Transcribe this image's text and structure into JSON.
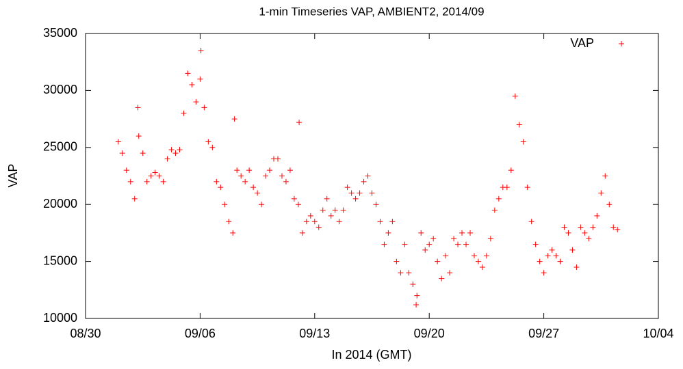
{
  "chart_data": {
    "type": "scatter",
    "title": "1-min Timeseries VAP, AMBIENT2, 2014/09",
    "x_label": "In 2014 (GMT)",
    "y_label": "VAP",
    "legend_position": "top-right",
    "series": [
      {
        "name": "VAP",
        "color": "#ff0000",
        "x": [
          2.0,
          2.25,
          2.5,
          2.75,
          3.0,
          3.25,
          3.5,
          3.75,
          4.0,
          4.25,
          4.5,
          4.75,
          5.0,
          5.25,
          5.5,
          5.75,
          6.0,
          6.25,
          6.5,
          6.75,
          7.0,
          7.25,
          7.5,
          7.75,
          8.0,
          8.25,
          8.5,
          8.75,
          9.0,
          9.25,
          9.5,
          9.75,
          10.0,
          10.25,
          10.5,
          10.75,
          11.0,
          11.25,
          11.5,
          11.75,
          12.0,
          12.25,
          12.5,
          12.75,
          13.0,
          13.25,
          13.5,
          13.75,
          14.0,
          14.25,
          14.5,
          14.75,
          15.0,
          15.25,
          15.5,
          15.75,
          16.0,
          16.25,
          16.5,
          16.75,
          17.0,
          17.25,
          17.5,
          17.75,
          18.0,
          18.25,
          18.5,
          18.75,
          19.0,
          19.25,
          19.5,
          19.75,
          20.0,
          20.25,
          20.5,
          20.75,
          21.0,
          21.25,
          21.5,
          21.75,
          22.0,
          22.25,
          22.5,
          22.75,
          23.0,
          23.25,
          23.5,
          23.75,
          24.0,
          24.25,
          24.5,
          24.75,
          25.0,
          25.25,
          25.5,
          25.75,
          26.0,
          26.25,
          26.5,
          26.75,
          27.0,
          27.25,
          27.5,
          27.75,
          28.0,
          28.25,
          28.5,
          28.75,
          29.0,
          29.25,
          29.5,
          29.75,
          30.0,
          30.25,
          30.5,
          30.75,
          31.0,
          31.25,
          31.5,
          31.75,
          32.0,
          32.25,
          32.5,
          7.05,
          9.1,
          13.05,
          3.2,
          20.2
        ],
        "values": [
          25500,
          24500,
          23000,
          22000,
          20500,
          26000,
          24500,
          22000,
          22500,
          22800,
          22500,
          22000,
          24000,
          24800,
          24500,
          24800,
          28000,
          31500,
          30500,
          29000,
          31000,
          28500,
          25500,
          25000,
          22000,
          21500,
          20000,
          18500,
          17500,
          23000,
          22500,
          22000,
          23000,
          21500,
          21000,
          20000,
          22500,
          23000,
          24000,
          24000,
          22500,
          22000,
          23000,
          20500,
          20000,
          17500,
          18500,
          19000,
          18500,
          18000,
          19500,
          20500,
          19000,
          19500,
          18500,
          19500,
          21500,
          21000,
          20500,
          21000,
          22000,
          22500,
          21000,
          20000,
          18500,
          16500,
          17500,
          18500,
          15000,
          14000,
          16500,
          14000,
          13000,
          12000,
          17500,
          16000,
          16500,
          17000,
          15000,
          13500,
          15500,
          14000,
          17000,
          16500,
          17500,
          16500,
          17500,
          15500,
          15000,
          14500,
          15500,
          17000,
          19500,
          20500,
          21500,
          21500,
          23000,
          29500,
          27000,
          25500,
          21500,
          18500,
          16500,
          15000,
          14000,
          15500,
          16000,
          15500,
          15000,
          18000,
          17500,
          16000,
          14500,
          18000,
          17500,
          17000,
          18000,
          19000,
          21000,
          22500,
          20000,
          18000,
          17800,
          33500,
          27500,
          27200,
          28500,
          11200
        ]
      }
    ],
    "xlim": [
      0,
      35
    ],
    "xticks": [
      {
        "value": 0,
        "label": "08/30"
      },
      {
        "value": 7,
        "label": "09/06"
      },
      {
        "value": 14,
        "label": "09/13"
      },
      {
        "value": 21,
        "label": "09/20"
      },
      {
        "value": 28,
        "label": "09/27"
      },
      {
        "value": 35,
        "label": "10/04"
      }
    ],
    "ylim": [
      10000,
      35000
    ],
    "yticks": [
      10000,
      15000,
      20000,
      25000,
      30000,
      35000
    ],
    "grid": false
  }
}
